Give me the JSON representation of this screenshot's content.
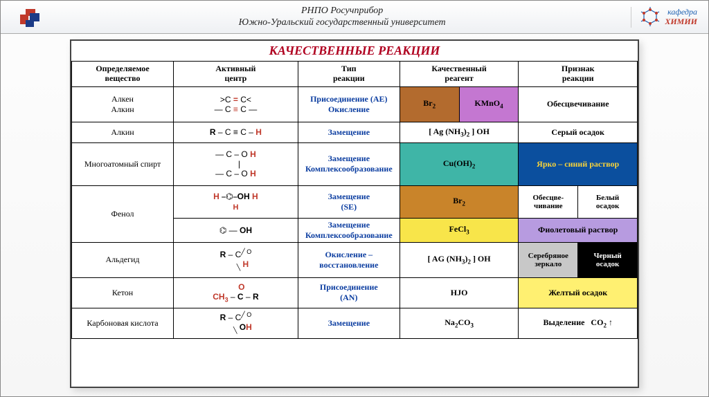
{
  "header": {
    "line1": "РНПО  Росучприбор",
    "line2": "Южно-Уральский государственный университет",
    "dept_label1": "кафедра",
    "dept_label2": "ХИМИИ"
  },
  "caption": "КАЧЕСТВЕННЫЕ РЕАКЦИИ",
  "columns": [
    "Определяемое\nвещество",
    "Активный\nцентр",
    "Тип\nреакции",
    "Качественный\nреагент",
    "Признак\nреакции"
  ],
  "colors": {
    "caption": "#b00020",
    "blue_text": "#0b3da0",
    "row1_reag1_bg": "#b36b2e",
    "row1_reag2_bg": "#c477d1",
    "row3_reag_bg": "#3fb5a7",
    "row3_sign_bg": "#0b4f9e",
    "row3_sign_fg": "#f6d23b",
    "row4a_reag_bg": "#c9842a",
    "row4b_reag_bg": "#f8e54a",
    "row4b_sign_bg": "#b79be0",
    "row5_sign1_bg": "#c8c8c8",
    "row5_sign2_bg": "#000000",
    "row5_sign2_fg": "#ffffff",
    "row6_sign_bg": "#fff071",
    "red": "#c0392b"
  },
  "rows": {
    "r1": {
      "subst1": "Алкен",
      "subst2": "Алкин",
      "center_top": ">C = C<",
      "center_bot": "— C ≡ C —",
      "type1": "Присоединение (АЕ)",
      "type2": "Окисление",
      "reag1": "Br",
      "reag1_sub": "2",
      "reag2": "KMnO",
      "reag2_sub": "4",
      "sign": "Обесцвечивание"
    },
    "r2": {
      "subst": "Алкин",
      "center": "R – C ≡ C – H",
      "type": "Замещение",
      "reag": "[ Ag (NH3)2 ] OH",
      "sign": "Серый осадок"
    },
    "r3": {
      "subst": "Многоатомный спирт",
      "center_l1": "— C – O H",
      "center_l2": "— C – O H",
      "type1": "Замещение",
      "type2": "Комплексообразование",
      "reag": "Cu(OH)",
      "reag_sub": "2",
      "sign": "Ярко – синий раствор"
    },
    "r4": {
      "subst": "Фенол",
      "center_top": "⌬ – OH  (H, H)",
      "center_bot": "⌬ – OH",
      "type_a1": "Замещение",
      "type_a2": "(SE)",
      "type_b1": "Замещение",
      "type_b2": "Комплексообразование",
      "reag_a": "Br",
      "reag_a_sub": "2",
      "reag_b": "FeCl",
      "reag_b_sub": "3",
      "sign_a1": "Обесцве-\nчивание",
      "sign_a2": "Белый\nосадок",
      "sign_b": "Фиолетовый раствор"
    },
    "r5": {
      "subst": "Альдегид",
      "center": "R – C<OH (=O)",
      "type1": "Окисление –",
      "type2": "восстановление",
      "reag": "[ AG (NH3)2 ] OH",
      "sign1": "Серебряное\nзеркало",
      "sign2": "Черный\nосадок"
    },
    "r6": {
      "subst": "Кетон",
      "center": "CH3 – C(=O) – R",
      "type1": "Присоединение",
      "type2": "(АN)",
      "reag": "HJO",
      "sign": "Желтый осадок"
    },
    "r7": {
      "subst": "Карбоновая кислота",
      "center": "R – C(=O)OH",
      "type": "Замещение",
      "reag": "Na2CO3",
      "sign": "Выделение   CO2 ↑"
    }
  }
}
